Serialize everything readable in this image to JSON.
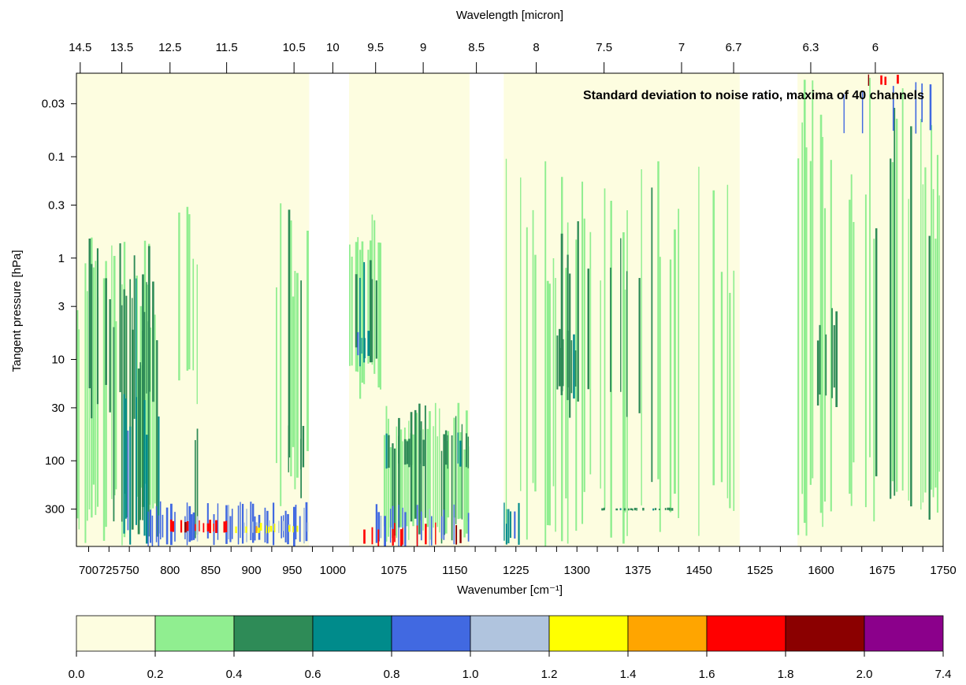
{
  "chart_data": {
    "type": "heatmap",
    "title": "Standard deviation to noise ratio, maxima of 40 channels",
    "xlabel": "Wavenumber [cm⁻¹]",
    "x2label": "Wavelength [micron]",
    "ylabel": "Tangent pressure [hPa]",
    "xlim": [
      685,
      1750
    ],
    "ylim_log": [
      700,
      0.015
    ],
    "y_scale": "log",
    "x_ticks": [
      700,
      725,
      750,
      775,
      800,
      825,
      850,
      875,
      900,
      925,
      950,
      975,
      1000,
      1025,
      1050,
      1075,
      1100,
      1125,
      1150,
      1175,
      1200,
      1225,
      1250,
      1275,
      1300,
      1325,
      1350,
      1375,
      1400,
      1425,
      1450,
      1475,
      1500,
      1525,
      1550,
      1575,
      1600,
      1625,
      1650,
      1675,
      1700,
      1725,
      1750
    ],
    "x_tick_labels": [
      {
        "value": 700,
        "label": "700"
      },
      {
        "value": 725,
        "label": "725"
      },
      {
        "value": 750,
        "label": "750"
      },
      {
        "value": 800,
        "label": "800"
      },
      {
        "value": 850,
        "label": "850"
      },
      {
        "value": 900,
        "label": "900"
      },
      {
        "value": 950,
        "label": "950"
      },
      {
        "value": 1000,
        "label": "1000"
      },
      {
        "value": 1075,
        "label": "1075"
      },
      {
        "value": 1150,
        "label": "1150"
      },
      {
        "value": 1225,
        "label": "1225"
      },
      {
        "value": 1300,
        "label": "1300"
      },
      {
        "value": 1375,
        "label": "1375"
      },
      {
        "value": 1450,
        "label": "1450"
      },
      {
        "value": 1525,
        "label": "1525"
      },
      {
        "value": 1600,
        "label": "1600"
      },
      {
        "value": 1675,
        "label": "1675"
      },
      {
        "value": 1750,
        "label": "1750"
      }
    ],
    "wavelength_ticks": [
      {
        "um": 14.5,
        "label": "14.5"
      },
      {
        "um": 13.5,
        "label": "13.5"
      },
      {
        "um": 12.5,
        "label": "12.5"
      },
      {
        "um": 11.5,
        "label": "11.5"
      },
      {
        "um": 10.5,
        "label": "10.5"
      },
      {
        "um": 10,
        "label": "10"
      },
      {
        "um": 9.5,
        "label": "9.5"
      },
      {
        "um": 9,
        "label": "9"
      },
      {
        "um": 8.5,
        "label": "8.5"
      },
      {
        "um": 8,
        "label": "8"
      },
      {
        "um": 7.5,
        "label": "7.5"
      },
      {
        "um": 7,
        "label": "7"
      },
      {
        "um": 6.7,
        "label": "6.7"
      },
      {
        "um": 6.3,
        "label": "6.3"
      },
      {
        "um": 6,
        "label": "6"
      }
    ],
    "y_ticks": [
      {
        "value": 0.03,
        "label": "0.03"
      },
      {
        "value": 0.1,
        "label": "0.1"
      },
      {
        "value": 0.3,
        "label": "0.3"
      },
      {
        "value": 1,
        "label": "1"
      },
      {
        "value": 3,
        "label": "3"
      },
      {
        "value": 10,
        "label": "10"
      },
      {
        "value": 30,
        "label": "30"
      },
      {
        "value": 100,
        "label": "100"
      },
      {
        "value": 300,
        "label": "300"
      }
    ],
    "colorbar": {
      "levels": [
        "0.0",
        "0.2",
        "0.4",
        "0.6",
        "0.8",
        "1.0",
        "1.2",
        "1.4",
        "1.6",
        "1.8",
        "2.0",
        "7.4"
      ],
      "colors": [
        "#fdfde0",
        "#90ee90",
        "#2e8b57",
        "#008b8b",
        "#4169e1",
        "#b0c4de",
        "#ffff00",
        "#ffa500",
        "#ff0000",
        "#8b0000",
        "#8b008b"
      ]
    },
    "gaps": [
      [
        971,
        1020
      ],
      [
        1168,
        1210
      ],
      [
        1500,
        1571
      ]
    ],
    "data_regions": [
      [
        685,
        971
      ],
      [
        1020,
        1168
      ],
      [
        1210,
        1500
      ],
      [
        1571,
        1750
      ]
    ],
    "features": [
      {
        "x0": 685,
        "x1": 790,
        "p_top": 0.45,
        "p_bot": 700,
        "level": 1,
        "density": 0.55
      },
      {
        "x0": 700,
        "x1": 780,
        "p_top": 0.6,
        "p_bot": 40,
        "level": 2,
        "density": 0.35
      },
      {
        "x0": 725,
        "x1": 790,
        "p_top": 1.5,
        "p_bot": 700,
        "level": 2,
        "density": 0.45
      },
      {
        "x0": 740,
        "x1": 800,
        "p_top": 20,
        "p_bot": 700,
        "level": 3,
        "density": 0.35
      },
      {
        "x0": 790,
        "x1": 840,
        "p_top": 40,
        "p_bot": 700,
        "level": 2,
        "density": 0.3
      },
      {
        "x0": 800,
        "x1": 840,
        "p_top": 0.3,
        "p_bot": 30,
        "level": 1,
        "density": 0.35
      },
      {
        "x0": 770,
        "x1": 970,
        "p_top": 250,
        "p_bot": 700,
        "level": 4,
        "density": 0.5
      },
      {
        "x0": 785,
        "x1": 870,
        "p_top": 380,
        "p_bot": 520,
        "level": 8,
        "density": 0.45
      },
      {
        "x0": 870,
        "x1": 970,
        "p_top": 380,
        "p_bot": 520,
        "level": 5,
        "density": 0.3
      },
      {
        "x0": 880,
        "x1": 965,
        "p_top": 430,
        "p_bot": 520,
        "level": 6,
        "density": 0.25
      },
      {
        "x0": 930,
        "x1": 970,
        "p_top": 0.25,
        "p_bot": 300,
        "level": 1,
        "density": 0.5
      },
      {
        "x0": 945,
        "x1": 965,
        "p_top": 40,
        "p_bot": 150,
        "level": 2,
        "density": 0.4
      },
      {
        "x0": 1020,
        "x1": 1060,
        "p_top": 0.3,
        "p_bot": 25,
        "level": 1,
        "density": 0.7
      },
      {
        "x0": 1025,
        "x1": 1055,
        "p_top": 0.6,
        "p_bot": 12,
        "level": 2,
        "density": 0.4
      },
      {
        "x0": 1025,
        "x1": 1045,
        "p_top": 5,
        "p_bot": 10,
        "level": 3,
        "density": 0.5
      },
      {
        "x0": 1060,
        "x1": 1168,
        "p_top": 25,
        "p_bot": 700,
        "level": 1,
        "density": 0.85
      },
      {
        "x0": 1065,
        "x1": 1168,
        "p_top": 50,
        "p_bot": 120,
        "level": 2,
        "density": 0.4
      },
      {
        "x0": 1030,
        "x1": 1168,
        "p_top": 250,
        "p_bot": 700,
        "level": 4,
        "density": 0.35
      },
      {
        "x0": 1030,
        "x1": 1168,
        "p_top": 400,
        "p_bot": 700,
        "level": 8,
        "density": 0.2
      },
      {
        "x0": 1210,
        "x1": 1230,
        "p_top": 250,
        "p_bot": 700,
        "level": 3,
        "density": 0.5
      },
      {
        "x0": 1210,
        "x1": 1500,
        "p_top": 0.1,
        "p_bot": 700,
        "level": 1,
        "density": 0.3
      },
      {
        "x0": 1260,
        "x1": 1380,
        "p_top": 0.4,
        "p_bot": 40,
        "level": 2,
        "density": 0.15
      },
      {
        "x0": 1275,
        "x1": 1300,
        "p_top": 5,
        "p_bot": 25,
        "level": 2,
        "density": 0.5
      },
      {
        "x0": 1330,
        "x1": 1420,
        "p_top": 300,
        "p_bot": 300,
        "level": 2,
        "density": 0.5
      },
      {
        "x0": 1571,
        "x1": 1750,
        "p_top": 0.015,
        "p_bot": 700,
        "level": 1,
        "density": 0.45
      },
      {
        "x0": 1595,
        "x1": 1620,
        "p_top": 3,
        "p_bot": 30,
        "level": 2,
        "density": 0.6
      },
      {
        "x0": 1620,
        "x1": 1750,
        "p_top": 0.015,
        "p_bot": 0.06,
        "level": 4,
        "density": 0.12
      },
      {
        "x0": 1630,
        "x1": 1720,
        "p_top": 0.015,
        "p_bot": 0.02,
        "level": 8,
        "density": 0.1
      }
    ]
  }
}
